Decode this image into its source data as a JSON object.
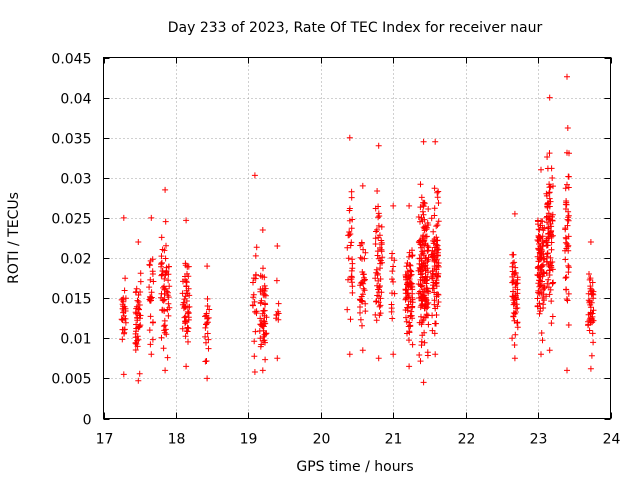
{
  "chart_data": {
    "type": "scatter",
    "title": "Day 233 of 2023, Rate Of TEC Index for receiver naur",
    "xlabel": "GPS time / hours",
    "ylabel": "ROTI / TECUs",
    "xlim": [
      17,
      24
    ],
    "ylim": [
      0,
      0.045
    ],
    "xticks": [
      17,
      18,
      19,
      20,
      21,
      22,
      23,
      24
    ],
    "yticks": [
      0,
      0.005,
      0.01,
      0.015,
      0.02,
      0.025,
      0.03,
      0.035,
      0.04,
      0.045
    ],
    "ytick_labels": [
      "0",
      "0.005",
      "0.01",
      "0.015",
      "0.02",
      "0.025",
      "0.03",
      "0.035",
      "0.04",
      "0.045"
    ],
    "xtick_labels": [
      "17",
      "18",
      "19",
      "20",
      "21",
      "22",
      "23",
      "24"
    ],
    "grid": true,
    "marker": "+",
    "color": "#ff0000",
    "series": [
      {
        "name": "ROTI",
        "clusters": [
          {
            "x": 17.28,
            "width": 0.06,
            "ymin": 0.0055,
            "ymax": 0.025,
            "count": 30
          },
          {
            "x": 17.48,
            "width": 0.08,
            "ymin": 0.0047,
            "ymax": 0.022,
            "count": 45
          },
          {
            "x": 17.66,
            "width": 0.06,
            "ymin": 0.008,
            "ymax": 0.025,
            "count": 25
          },
          {
            "x": 17.85,
            "width": 0.12,
            "ymin": 0.006,
            "ymax": 0.0285,
            "count": 60
          },
          {
            "x": 18.14,
            "width": 0.1,
            "ymin": 0.0065,
            "ymax": 0.0247,
            "count": 50
          },
          {
            "x": 18.43,
            "width": 0.06,
            "ymin": 0.005,
            "ymax": 0.019,
            "count": 22
          },
          {
            "x": 19.09,
            "width": 0.06,
            "ymin": 0.0058,
            "ymax": 0.0303,
            "count": 20
          },
          {
            "x": 19.2,
            "width": 0.1,
            "ymin": 0.006,
            "ymax": 0.0235,
            "count": 55
          },
          {
            "x": 19.4,
            "width": 0.04,
            "ymin": 0.0075,
            "ymax": 0.0215,
            "count": 10
          },
          {
            "x": 20.4,
            "width": 0.08,
            "ymin": 0.008,
            "ymax": 0.035,
            "count": 30
          },
          {
            "x": 20.58,
            "width": 0.08,
            "ymin": 0.0085,
            "ymax": 0.029,
            "count": 35
          },
          {
            "x": 20.8,
            "width": 0.1,
            "ymin": 0.0075,
            "ymax": 0.034,
            "count": 55
          },
          {
            "x": 21.0,
            "width": 0.05,
            "ymin": 0.008,
            "ymax": 0.0265,
            "count": 15
          },
          {
            "x": 21.22,
            "width": 0.1,
            "ymin": 0.0065,
            "ymax": 0.0265,
            "count": 80
          },
          {
            "x": 21.42,
            "width": 0.14,
            "ymin": 0.0045,
            "ymax": 0.0345,
            "count": 160
          },
          {
            "x": 21.58,
            "width": 0.1,
            "ymin": 0.008,
            "ymax": 0.0345,
            "count": 90
          },
          {
            "x": 22.68,
            "width": 0.08,
            "ymin": 0.0075,
            "ymax": 0.0255,
            "count": 55
          },
          {
            "x": 23.04,
            "width": 0.1,
            "ymin": 0.008,
            "ymax": 0.031,
            "count": 100
          },
          {
            "x": 23.16,
            "width": 0.1,
            "ymin": 0.0085,
            "ymax": 0.04,
            "count": 90
          },
          {
            "x": 23.4,
            "width": 0.06,
            "ymin": 0.006,
            "ymax": 0.0426,
            "count": 45
          },
          {
            "x": 23.73,
            "width": 0.08,
            "ymin": 0.0062,
            "ymax": 0.022,
            "count": 45
          }
        ]
      }
    ]
  }
}
